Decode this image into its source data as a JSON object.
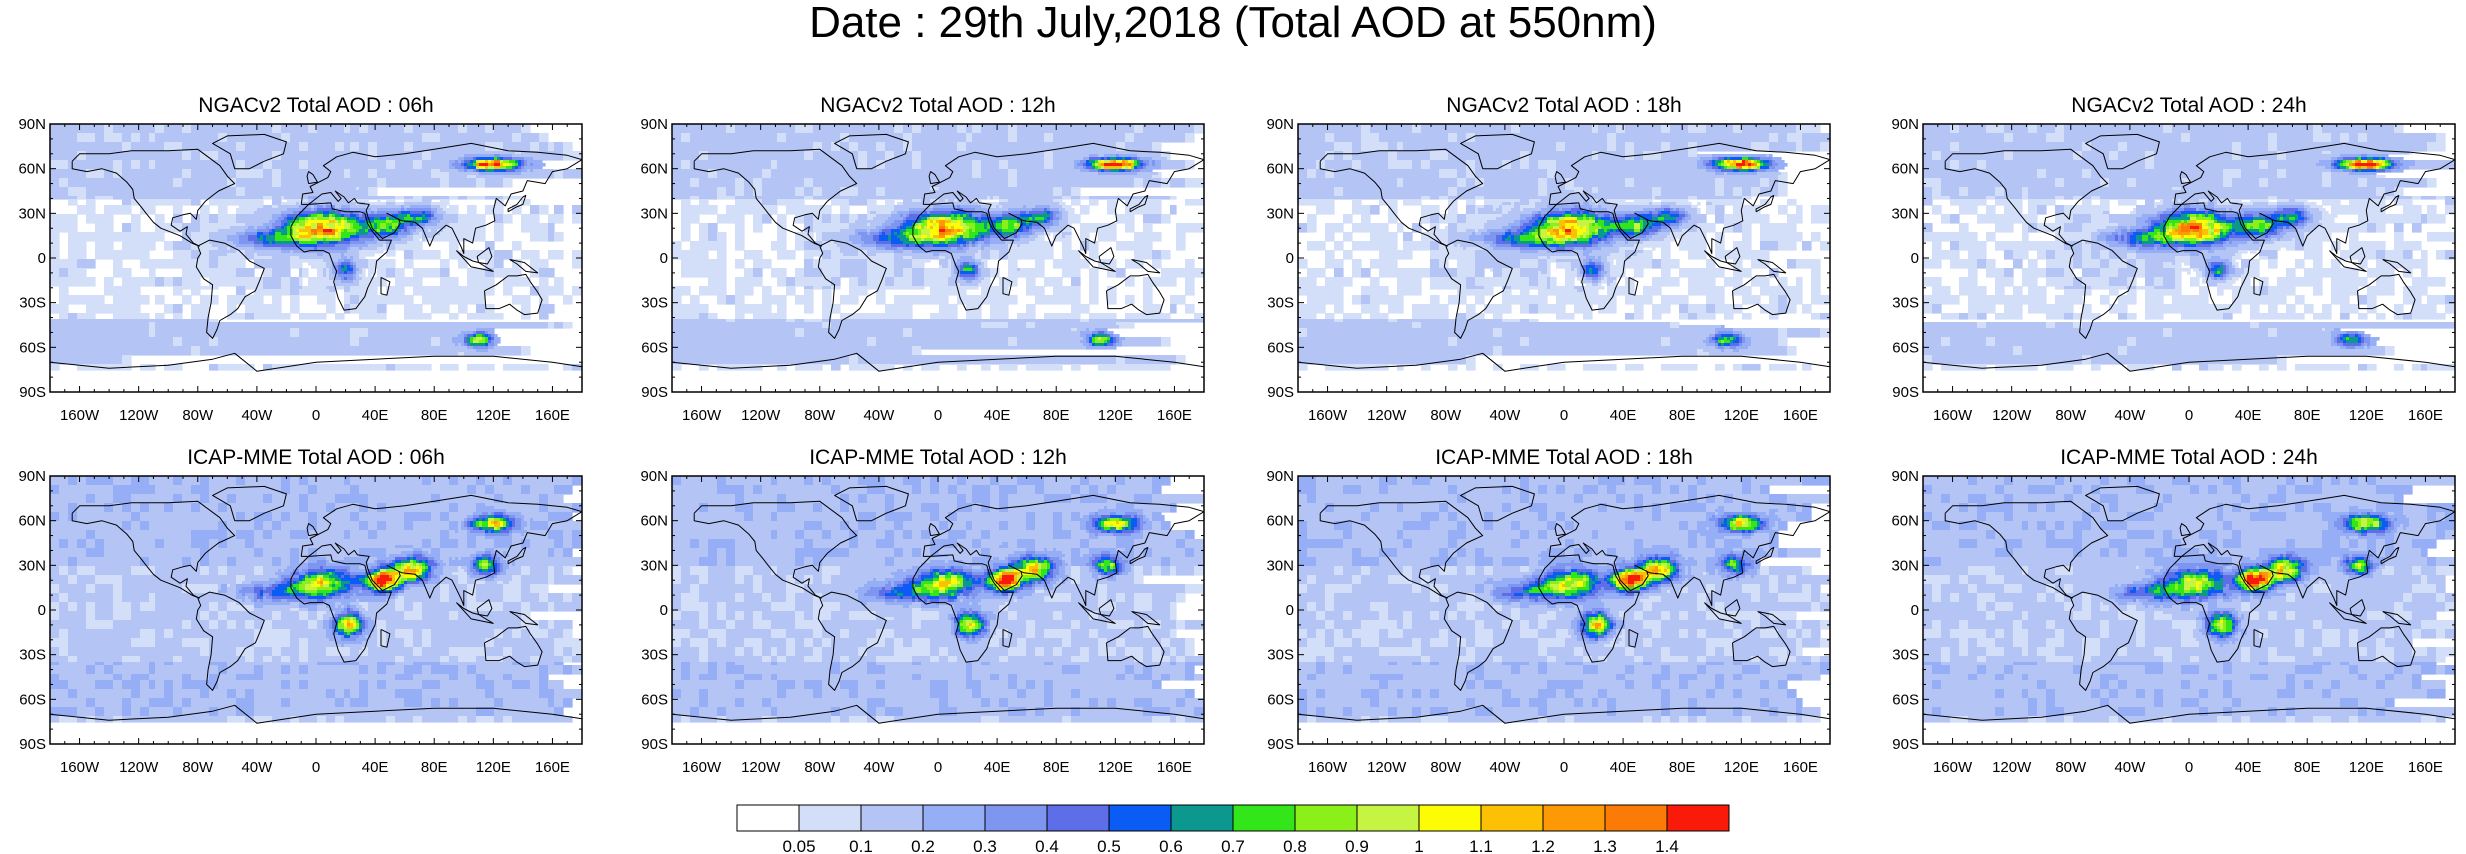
{
  "figure": {
    "title": "Date : 29th July,2018 (Total AOD at 550nm)"
  },
  "panels": [
    {
      "title": "NGACv2 Total AOD : 06h",
      "model": "NGACv2"
    },
    {
      "title": "NGACv2 Total AOD : 12h",
      "model": "NGACv2"
    },
    {
      "title": "NGACv2 Total AOD : 18h",
      "model": "NGACv2"
    },
    {
      "title": "NGACv2 Total AOD : 24h",
      "model": "NGACv2"
    },
    {
      "title": "ICAP-MME Total AOD : 06h",
      "model": "ICAP-MME"
    },
    {
      "title": "ICAP-MME Total AOD : 12h",
      "model": "ICAP-MME"
    },
    {
      "title": "ICAP-MME Total AOD : 18h",
      "model": "ICAP-MME"
    },
    {
      "title": "ICAP-MME Total AOD : 24h",
      "model": "ICAP-MME"
    }
  ],
  "axes": {
    "lat_ticks": [
      "90N",
      "60N",
      "30N",
      "0",
      "30S",
      "60S",
      "90S"
    ],
    "lon_ticks": [
      "160W",
      "120W",
      "80W",
      "40W",
      "0",
      "40E",
      "80E",
      "120E",
      "160E"
    ],
    "lon_tick_values": [
      -160,
      -120,
      -80,
      -40,
      0,
      40,
      80,
      120,
      160
    ],
    "lat_tick_values": [
      90,
      60,
      30,
      0,
      -30,
      -60,
      -90
    ]
  },
  "colorbar": {
    "labels": [
      "0.05",
      "0.1",
      "0.2",
      "0.3",
      "0.4",
      "0.5",
      "0.6",
      "0.7",
      "0.8",
      "0.9",
      "1",
      "1.1",
      "1.2",
      "1.3",
      "1.4"
    ],
    "colors": [
      "#ffffff",
      "#d3def8",
      "#b4c4f5",
      "#95aef5",
      "#7f96f0",
      "#5d6ee8",
      "#0a5cf5",
      "#0c978f",
      "#33e619",
      "#8bf01a",
      "#c5f542",
      "#fcfc05",
      "#fcc105",
      "#fc9905",
      "#fa7b05",
      "#fa1a0a"
    ]
  },
  "chart_data": {
    "type": "heatmap",
    "title": "Date : 29th July,2018 (Total AOD at 550nm)",
    "variable": "Total AOD at 550nm",
    "date": "29th July,2018",
    "lon_range": [
      -180,
      180
    ],
    "lat_range": [
      -90,
      90
    ],
    "levels": [
      0.05,
      0.1,
      0.2,
      0.3,
      0.4,
      0.5,
      0.6,
      0.7,
      0.8,
      0.9,
      1,
      1.1,
      1.2,
      1.3,
      1.4
    ],
    "plumes": {
      "NGACv2": [
        {
          "region": "Sahara",
          "lon": 5,
          "lat": 20,
          "w": 32,
          "h": 14,
          "peak": 1.2
        },
        {
          "region": "Saharan outflow Atlantic",
          "lon": -30,
          "lat": 13,
          "w": 32,
          "h": 8,
          "peak": 0.45
        },
        {
          "region": "Middle East",
          "lon": 48,
          "lat": 22,
          "w": 20,
          "h": 10,
          "peak": 0.7
        },
        {
          "region": "South Asia",
          "lon": 70,
          "lat": 28,
          "w": 16,
          "h": 8,
          "peak": 0.55
        },
        {
          "region": "Central Africa",
          "lon": 20,
          "lat": -8,
          "w": 10,
          "h": 8,
          "peak": 0.6
        },
        {
          "region": "Siberia smoke",
          "lon": 120,
          "lat": 63,
          "w": 22,
          "h": 5,
          "peak": 1.4
        },
        {
          "region": "Southern Ocean",
          "lon": 110,
          "lat": -55,
          "w": 12,
          "h": 6,
          "peak": 0.7
        }
      ],
      "ICAP-MME": [
        {
          "region": "Sahara",
          "lon": 5,
          "lat": 18,
          "w": 26,
          "h": 12,
          "peak": 0.85
        },
        {
          "region": "Arabia",
          "lon": 45,
          "lat": 20,
          "w": 14,
          "h": 9,
          "peak": 1.45
        },
        {
          "region": "Iran/Pakistan",
          "lon": 65,
          "lat": 27,
          "w": 16,
          "h": 10,
          "peak": 1.0
        },
        {
          "region": "South-Central Africa",
          "lon": 22,
          "lat": -10,
          "w": 12,
          "h": 10,
          "peak": 1.0
        },
        {
          "region": "Siberia smoke",
          "lon": 120,
          "lat": 58,
          "w": 18,
          "h": 7,
          "peak": 0.9
        },
        {
          "region": "East Asia",
          "lon": 115,
          "lat": 30,
          "w": 12,
          "h": 8,
          "peak": 0.7
        },
        {
          "region": "Saharan outflow Atlantic",
          "lon": -25,
          "lat": 12,
          "w": 30,
          "h": 8,
          "peak": 0.4
        }
      ]
    }
  }
}
